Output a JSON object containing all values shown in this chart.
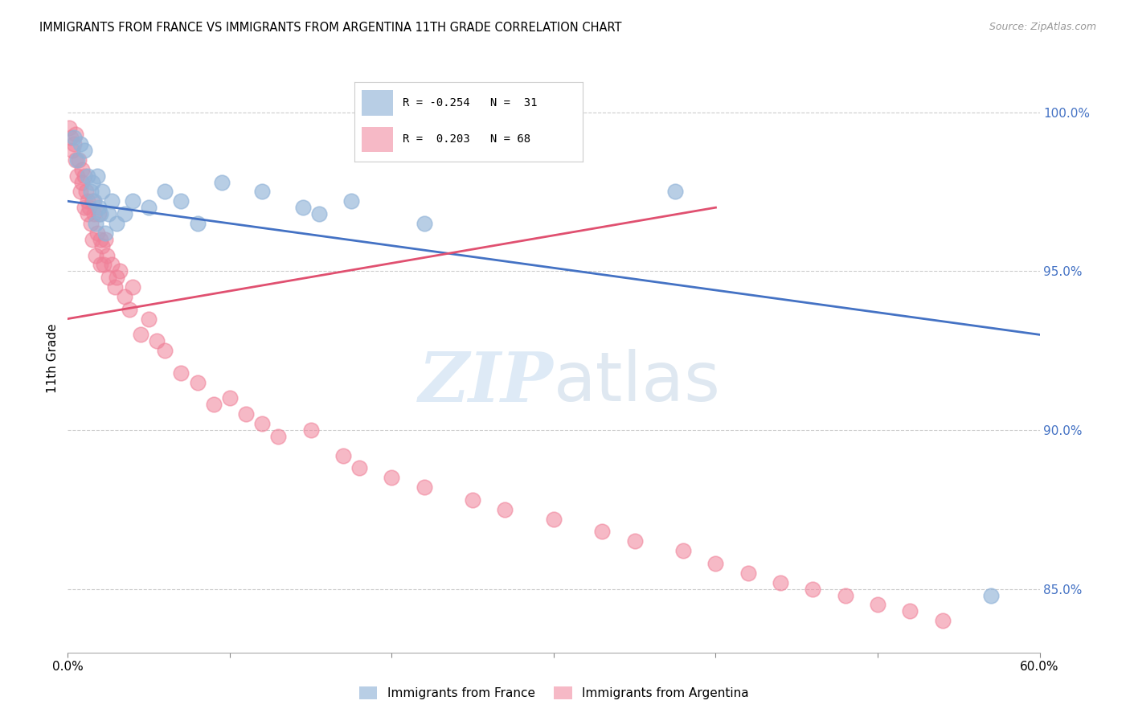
{
  "title": "IMMIGRANTS FROM FRANCE VS IMMIGRANTS FROM ARGENTINA 11TH GRADE CORRELATION CHART",
  "source": "Source: ZipAtlas.com",
  "ylabel": "11th Grade",
  "xlim": [
    0.0,
    60.0
  ],
  "ylim": [
    83.0,
    101.5
  ],
  "yticks": [
    85.0,
    90.0,
    95.0,
    100.0
  ],
  "ytick_labels": [
    "85.0%",
    "90.0%",
    "95.0%",
    "100.0%"
  ],
  "france_color": "#92b4d8",
  "argentina_color": "#f08098",
  "france_line_color": "#4472c4",
  "argentina_line_color": "#e05070",
  "france_scatter_x": [
    0.4,
    0.6,
    0.8,
    1.0,
    1.2,
    1.4,
    1.5,
    1.6,
    1.7,
    1.8,
    1.9,
    2.0,
    2.1,
    2.3,
    2.5,
    2.7,
    3.0,
    3.5,
    4.0,
    5.0,
    6.0,
    7.0,
    8.0,
    9.5,
    12.0,
    14.5,
    15.5,
    17.5,
    22.0,
    57.0,
    37.5
  ],
  "france_scatter_y": [
    99.2,
    98.5,
    99.0,
    98.8,
    98.0,
    97.5,
    97.8,
    97.2,
    96.5,
    98.0,
    97.0,
    96.8,
    97.5,
    96.2,
    96.8,
    97.2,
    96.5,
    96.8,
    97.2,
    97.0,
    97.5,
    97.2,
    96.5,
    97.8,
    97.5,
    97.0,
    96.8,
    97.2,
    96.5,
    84.8,
    97.5
  ],
  "argentina_scatter_x": [
    0.1,
    0.2,
    0.3,
    0.4,
    0.5,
    0.5,
    0.6,
    0.7,
    0.8,
    0.9,
    0.9,
    1.0,
    1.0,
    1.1,
    1.2,
    1.2,
    1.3,
    1.4,
    1.5,
    1.5,
    1.6,
    1.7,
    1.8,
    1.9,
    2.0,
    2.0,
    2.1,
    2.2,
    2.3,
    2.4,
    2.5,
    2.7,
    2.9,
    3.0,
    3.2,
    3.5,
    3.8,
    4.0,
    4.5,
    5.0,
    5.5,
    6.0,
    7.0,
    8.0,
    9.0,
    10.0,
    11.0,
    12.0,
    13.0,
    15.0,
    17.0,
    18.0,
    20.0,
    22.0,
    25.0,
    27.0,
    30.0,
    33.0,
    35.0,
    38.0,
    40.0,
    42.0,
    44.0,
    46.0,
    48.0,
    50.0,
    52.0,
    54.0
  ],
  "argentina_scatter_y": [
    99.5,
    99.2,
    98.8,
    99.0,
    98.5,
    99.3,
    98.0,
    98.5,
    97.5,
    98.2,
    97.8,
    97.0,
    98.0,
    97.5,
    97.2,
    96.8,
    97.0,
    96.5,
    97.2,
    96.0,
    96.8,
    95.5,
    96.2,
    96.8,
    95.2,
    96.0,
    95.8,
    95.2,
    96.0,
    95.5,
    94.8,
    95.2,
    94.5,
    94.8,
    95.0,
    94.2,
    93.8,
    94.5,
    93.0,
    93.5,
    92.8,
    92.5,
    91.8,
    91.5,
    90.8,
    91.0,
    90.5,
    90.2,
    89.8,
    90.0,
    89.2,
    88.8,
    88.5,
    88.2,
    87.8,
    87.5,
    87.2,
    86.8,
    86.5,
    86.2,
    85.8,
    85.5,
    85.2,
    85.0,
    84.8,
    84.5,
    84.3,
    84.0
  ],
  "france_line_x0": 0.0,
  "france_line_x1": 60.0,
  "france_line_y0": 97.2,
  "france_line_y1": 93.0,
  "argentina_line_x0": 0.0,
  "argentina_line_x1": 40.0,
  "argentina_line_y0": 93.5,
  "argentina_line_y1": 97.0
}
